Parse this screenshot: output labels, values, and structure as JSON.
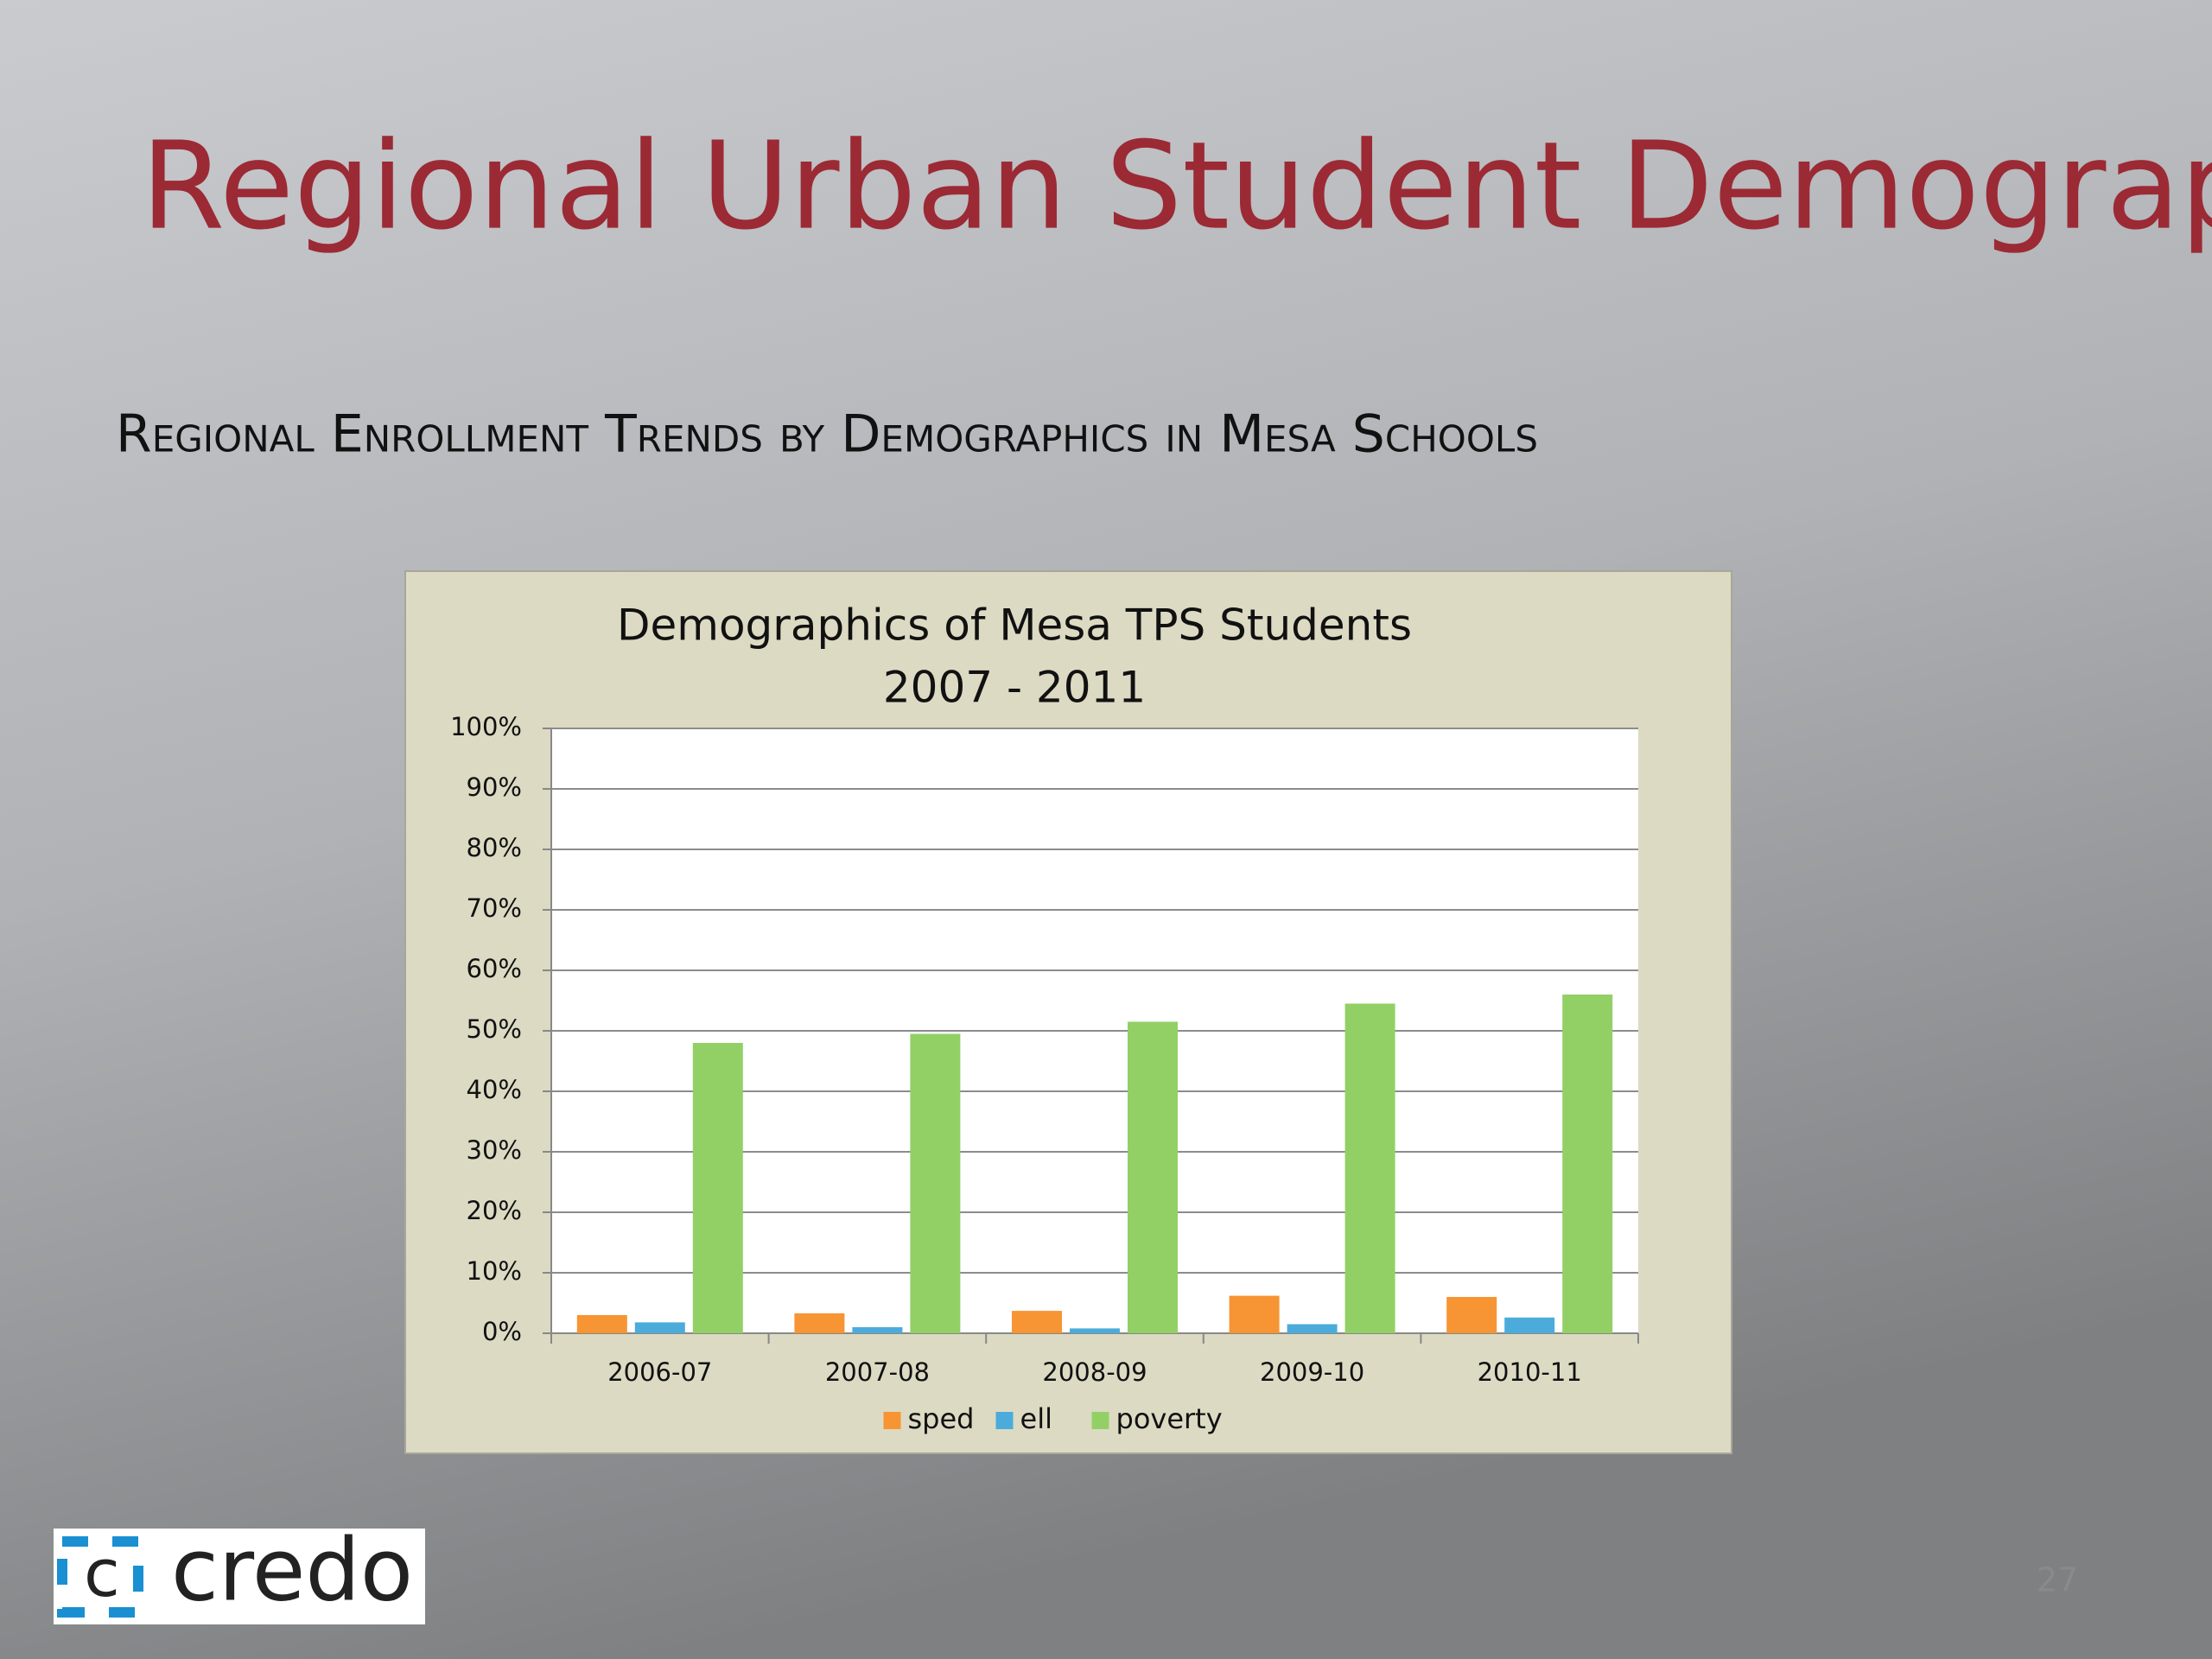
{
  "slide_title": "Regional Urban Student Demographics",
  "slide_subtitle": "Regional Enrollment Trends by Demographics in Mesa Schools",
  "logo_text": "credo",
  "page_number": "27",
  "chart_data": {
    "type": "bar",
    "title": "Demographics of Mesa TPS Students",
    "subtitle": "2007 - 2011",
    "categories": [
      "2006-07",
      "2007-08",
      "2008-09",
      "2009-10",
      "2010-11"
    ],
    "series": [
      {
        "name": "sped",
        "color": "#f79433",
        "values": [
          3,
          3.3,
          3.7,
          6.2,
          6
        ]
      },
      {
        "name": "ell",
        "color": "#4bacdb",
        "values": [
          1.8,
          1,
          0.8,
          1.5,
          2.6
        ]
      },
      {
        "name": "poverty",
        "color": "#92d066",
        "values": [
          48,
          49.5,
          51.5,
          54.5,
          56
        ]
      }
    ],
    "ylim": [
      0,
      100
    ],
    "yticks": [
      {
        "value": 0,
        "label": "0%"
      },
      {
        "value": 10,
        "label": "10%"
      },
      {
        "value": 20,
        "label": "20%"
      },
      {
        "value": 30,
        "label": "30%"
      },
      {
        "value": 40,
        "label": "40%"
      },
      {
        "value": 50,
        "label": "50%"
      },
      {
        "value": 60,
        "label": "60%"
      },
      {
        "value": 70,
        "label": "70%"
      },
      {
        "value": 80,
        "label": "80%"
      },
      {
        "value": 90,
        "label": "90%"
      },
      {
        "value": 100,
        "label": "100%"
      }
    ],
    "grid": true,
    "legend": "bottom"
  }
}
